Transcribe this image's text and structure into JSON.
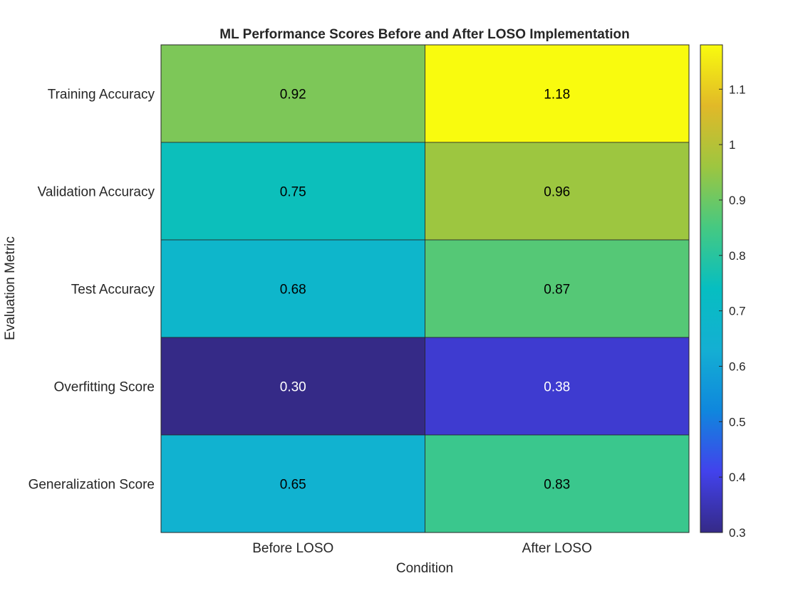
{
  "chart_data": {
    "type": "heatmap",
    "title": "ML Performance Scores Before and After LOSO Implementation",
    "xlabel": "Condition",
    "ylabel": "Evaluation Metric",
    "x_categories": [
      "Before LOSO",
      "After LOSO"
    ],
    "y_categories": [
      "Training Accuracy",
      "Validation Accuracy",
      "Test Accuracy",
      "Overfitting Score",
      "Generalization Score"
    ],
    "values": [
      [
        0.92,
        1.18
      ],
      [
        0.75,
        0.96
      ],
      [
        0.68,
        0.87
      ],
      [
        0.3,
        0.38
      ],
      [
        0.65,
        0.83
      ]
    ],
    "value_labels": [
      [
        "0.92",
        "1.18"
      ],
      [
        "0.75",
        "0.96"
      ],
      [
        "0.68",
        "0.87"
      ],
      [
        "0.30",
        "0.38"
      ],
      [
        "0.65",
        "0.83"
      ]
    ],
    "colorbar": {
      "range": [
        0.3,
        1.18
      ],
      "ticks": [
        0.3,
        0.4,
        0.5,
        0.6,
        0.7,
        0.8,
        0.9,
        1,
        1.1
      ],
      "tick_labels": [
        "0.3",
        "0.4",
        "0.5",
        "0.6",
        "0.7",
        "0.8",
        "0.9",
        "1",
        "1.1"
      ],
      "colormap": "parula"
    },
    "grid": false
  }
}
